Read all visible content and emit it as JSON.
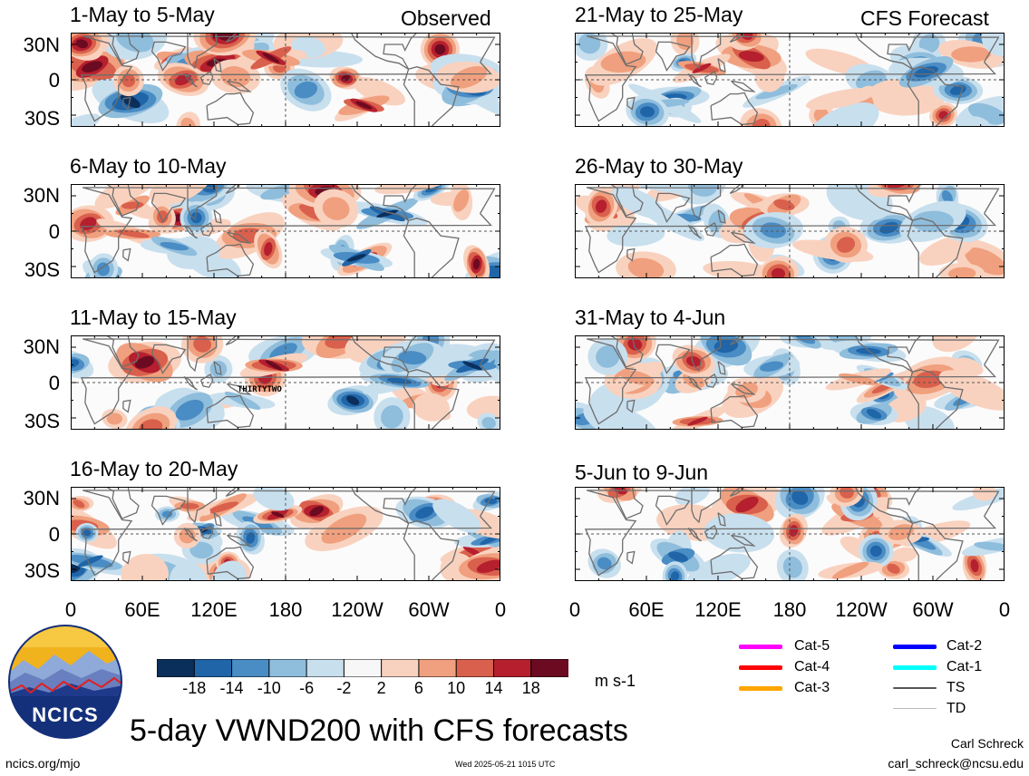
{
  "panels": [
    {
      "title": "1-May to 5-May",
      "tag": "Observed"
    },
    {
      "title": "6-May to 10-May",
      "tag": ""
    },
    {
      "title": "11-May to 15-May",
      "tag": ""
    },
    {
      "title": "16-May to 20-May",
      "tag": ""
    },
    {
      "title": "21-May to 25-May",
      "tag": "CFS Forecast"
    },
    {
      "title": "26-May to 30-May",
      "tag": ""
    },
    {
      "title": "31-May to 4-Jun",
      "tag": ""
    },
    {
      "title": "5-Jun to 9-Jun",
      "tag": ""
    }
  ],
  "storm_label": "THIRTYTWO",
  "lat_labels": [
    "30N",
    "0",
    "30S"
  ],
  "lon_labels": [
    "0",
    "60E",
    "120E",
    "180",
    "120W",
    "60W",
    "0"
  ],
  "colorbar": {
    "tick_labels": [
      "-18",
      "-14",
      "-10",
      "-6",
      "-2",
      "2",
      "6",
      "10",
      "14",
      "18"
    ],
    "unit": "m s-1",
    "colors": [
      "#0b2f5b",
      "#1f65a8",
      "#4a8cc4",
      "#8fbddc",
      "#c8dfee",
      "#f7f7f7",
      "#f9d2bf",
      "#f0a07e",
      "#d9604c",
      "#b51f2e",
      "#6b0a20"
    ]
  },
  "legend": [
    {
      "label": "Cat-5",
      "color": "#ff00ff"
    },
    {
      "label": "Cat-4",
      "color": "#ff0000"
    },
    {
      "label": "Cat-3",
      "color": "#ffa500"
    },
    {
      "label": "Cat-2",
      "color": "#0000ff"
    },
    {
      "label": "Cat-1",
      "color": "#00ffff"
    },
    {
      "label": "TS",
      "color": "#555555"
    },
    {
      "label": "TD",
      "color": "#bbbbbb"
    }
  ],
  "logo_text": "NCICS",
  "main_title": "5-day VWND200 with CFS forecasts",
  "footer_left": "ncics.org/mjo",
  "footer_center": "Wed 2025-05-21 1015 UTC",
  "author": "Carl Schreck",
  "email": "carl_schreck@ncsu.edu"
}
